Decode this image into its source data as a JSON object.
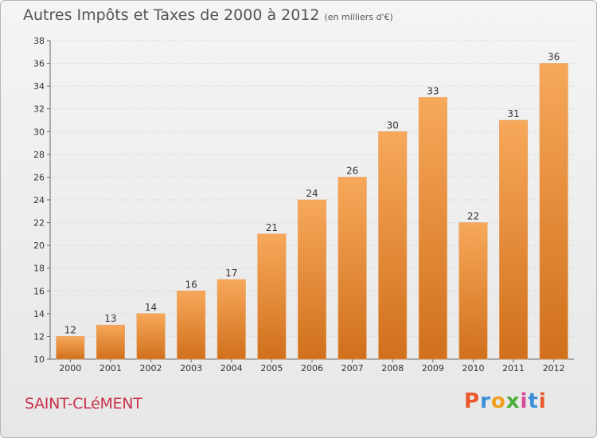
{
  "header": {
    "title": "Autres Impôts et Taxes de 2000 à 2012",
    "subtitle": "(en milliers d'€)"
  },
  "footer": {
    "commune": "SAINT-CLéMENT",
    "logo_letters": [
      "P",
      "r",
      "o",
      "x",
      "i",
      "t",
      "i"
    ]
  },
  "colors": {
    "bar_top": "#f7a85a",
    "bar_bottom": "#d0701c",
    "grid": "#d8d8d8",
    "commune": "#c8324a"
  },
  "chart_data": {
    "type": "bar",
    "title": "Autres Impôts et Taxes de 2000 à 2012",
    "subtitle": "(en milliers d'€)",
    "categories": [
      "2000",
      "2001",
      "2002",
      "2003",
      "2004",
      "2005",
      "2006",
      "2007",
      "2008",
      "2009",
      "2010",
      "2011",
      "2012"
    ],
    "values": [
      12,
      13,
      14,
      16,
      17,
      21,
      24,
      26,
      30,
      33,
      22,
      31,
      36
    ],
    "ylim": [
      10,
      38
    ],
    "yticks": [
      10,
      12,
      14,
      16,
      18,
      20,
      22,
      24,
      26,
      28,
      30,
      32,
      34,
      36,
      38
    ],
    "grid": true,
    "data_labels": true
  }
}
